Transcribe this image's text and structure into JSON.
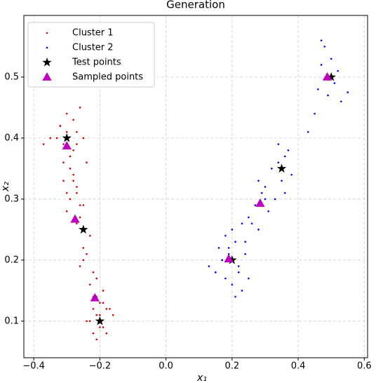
{
  "chart_data": {
    "type": "scatter",
    "title": "Generation",
    "xlabel": "x₁",
    "ylabel": "x₂",
    "xlim": [
      -0.43,
      0.61
    ],
    "ylim": [
      0.04,
      0.601
    ],
    "xticks": [
      {
        "value": -0.4,
        "label": "−0.4"
      },
      {
        "value": -0.2,
        "label": "−0.2"
      },
      {
        "value": 0,
        "label": "0.0"
      },
      0.2,
      0.4,
      0.6
    ],
    "yticks": [
      0.1,
      0.2,
      0.3,
      0.4,
      0.5
    ],
    "grid": true,
    "legend": "upper left",
    "series": [
      {
        "name": "Cluster 1",
        "color": "#cc0000",
        "marker": "dot",
        "x": [
          -0.32,
          -0.3,
          -0.31,
          -0.28,
          -0.33,
          -0.29,
          -0.27,
          -0.35,
          -0.31,
          -0.3,
          -0.28,
          -0.32,
          -0.26,
          -0.29,
          -0.31,
          -0.27,
          -0.3,
          -0.28,
          -0.29,
          -0.27,
          -0.3,
          -0.26,
          -0.28,
          -0.27,
          -0.25,
          -0.26,
          -0.24,
          -0.25,
          -0.23,
          -0.27,
          -0.24,
          -0.26,
          -0.22,
          -0.25,
          -0.23,
          -0.21,
          -0.22,
          -0.2,
          -0.19,
          -0.21,
          -0.18,
          -0.23,
          -0.2,
          -0.17,
          -0.22,
          -0.19,
          -0.21,
          -0.16,
          -0.24,
          -0.2,
          -0.18,
          -0.22,
          -0.19,
          -0.21,
          -0.25,
          -0.37
        ],
        "y": [
          0.42,
          0.41,
          0.39,
          0.43,
          0.4,
          0.37,
          0.41,
          0.4,
          0.36,
          0.44,
          0.38,
          0.42,
          0.45,
          0.35,
          0.33,
          0.39,
          0.31,
          0.34,
          0.3,
          0.32,
          0.28,
          0.29,
          0.33,
          0.31,
          0.4,
          0.27,
          0.36,
          0.22,
          0.24,
          0.26,
          0.21,
          0.19,
          0.18,
          0.2,
          0.16,
          0.17,
          0.14,
          0.13,
          0.15,
          0.11,
          0.12,
          0.1,
          0.09,
          0.12,
          0.08,
          0.13,
          0.07,
          0.11,
          0.1,
          0.11,
          0.08,
          0.12,
          0.09,
          0.14,
          0.29,
          0.39
        ]
      },
      {
        "name": "Cluster 2",
        "color": "#0000ff",
        "marker": "dot",
        "x": [
          0.13,
          0.15,
          0.17,
          0.16,
          0.18,
          0.19,
          0.2,
          0.21,
          0.22,
          0.23,
          0.18,
          0.2,
          0.22,
          0.24,
          0.21,
          0.25,
          0.19,
          0.23,
          0.17,
          0.24,
          0.25,
          0.27,
          0.28,
          0.29,
          0.3,
          0.26,
          0.31,
          0.28,
          0.3,
          0.33,
          0.32,
          0.34,
          0.35,
          0.36,
          0.37,
          0.38,
          0.34,
          0.36,
          0.43,
          0.45,
          0.46,
          0.47,
          0.48,
          0.49,
          0.5,
          0.51,
          0.52,
          0.53,
          0.47,
          0.55
        ],
        "y": [
          0.19,
          0.18,
          0.2,
          0.22,
          0.17,
          0.21,
          0.16,
          0.23,
          0.18,
          0.15,
          0.24,
          0.25,
          0.19,
          0.21,
          0.14,
          0.17,
          0.22,
          0.26,
          0.2,
          0.23,
          0.27,
          0.29,
          0.25,
          0.31,
          0.3,
          0.26,
          0.28,
          0.33,
          0.32,
          0.3,
          0.35,
          0.36,
          0.33,
          0.37,
          0.38,
          0.34,
          0.39,
          0.31,
          0.41,
          0.44,
          0.48,
          0.52,
          0.55,
          0.47,
          0.53,
          0.49,
          0.51,
          0.46,
          0.56,
          0.475
        ]
      },
      {
        "name": "Test points",
        "color": "#000000",
        "marker": "star",
        "x": [
          -0.3,
          -0.25,
          -0.2,
          0.2,
          0.35,
          0.5
        ],
        "y": [
          0.4,
          0.25,
          0.1,
          0.2,
          0.35,
          0.5
        ]
      },
      {
        "name": "Sampled points",
        "color": "#bf00bf",
        "marker": "triangle",
        "x": [
          -0.3,
          -0.275,
          -0.215,
          0.19,
          0.285,
          0.488
        ],
        "y": [
          0.387,
          0.267,
          0.138,
          0.202,
          0.293,
          0.5
        ]
      }
    ]
  }
}
